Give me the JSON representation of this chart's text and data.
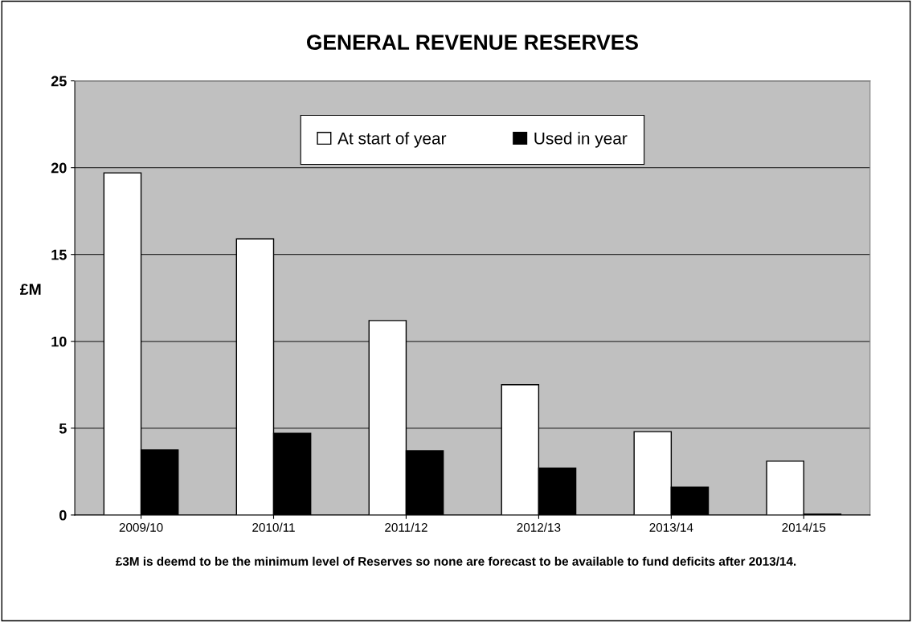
{
  "chart_data": {
    "type": "bar",
    "title": "GENERAL REVENUE RESERVES",
    "ylabel": "£M",
    "categories": [
      "2009/10",
      "2010/11",
      "2011/12",
      "2012/13",
      "2013/14",
      "2014/15"
    ],
    "series": [
      {
        "name": "At start of year",
        "color": "#ffffff",
        "values": [
          19.7,
          15.9,
          11.2,
          7.5,
          4.8,
          3.1
        ]
      },
      {
        "name": "Used in year",
        "color": "#000000",
        "values": [
          3.75,
          4.7,
          3.7,
          2.7,
          1.6,
          0.05
        ]
      }
    ],
    "ylim": [
      0,
      25
    ],
    "yticks": [
      0,
      5,
      10,
      15,
      20,
      25
    ],
    "grid": "y",
    "legend": "top",
    "annotations": [
      "£3M is deemd to be the minimum level of Reserves so none are forecast to be available to fund deficits after 2013/14."
    ]
  }
}
